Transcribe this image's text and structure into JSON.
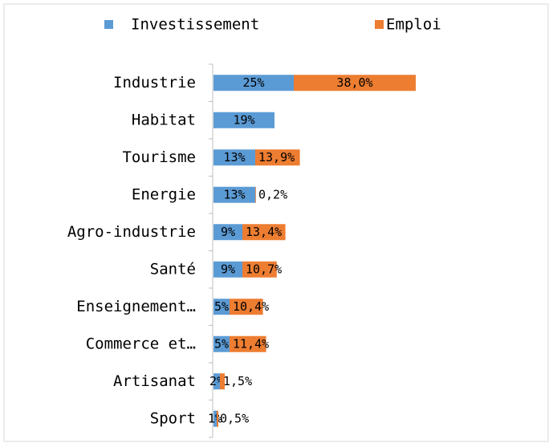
{
  "chart_data": {
    "type": "bar",
    "orientation": "horizontal",
    "stacked": true,
    "categories": [
      "Industrie",
      "Habitat",
      "Tourisme",
      "Energie",
      "Agro-industrie",
      "Santé",
      "Enseignement…",
      "Commerce et…",
      "Artisanat",
      "Sport"
    ],
    "series": [
      {
        "name": "Investissement",
        "color": "#5b9bd5",
        "values": [
          25,
          19,
          13,
          13,
          9,
          9,
          5,
          5,
          2,
          1
        ],
        "value_labels": [
          "25%",
          "19%",
          "13%",
          "13%",
          "9%",
          "9%",
          "5%",
          "5%",
          "2%",
          "1%"
        ]
      },
      {
        "name": "Emploi",
        "color": "#ed7d31",
        "values": [
          38.0,
          null,
          13.9,
          0.2,
          13.4,
          10.7,
          10.4,
          11.4,
          1.5,
          0.5
        ],
        "value_labels": [
          "38,0%",
          null,
          "13,9%",
          "0,2%",
          "13,4%",
          "10,7%",
          "10,4%",
          "11,4%",
          "1,5%",
          "0,5%"
        ]
      }
    ],
    "legend": "top"
  }
}
